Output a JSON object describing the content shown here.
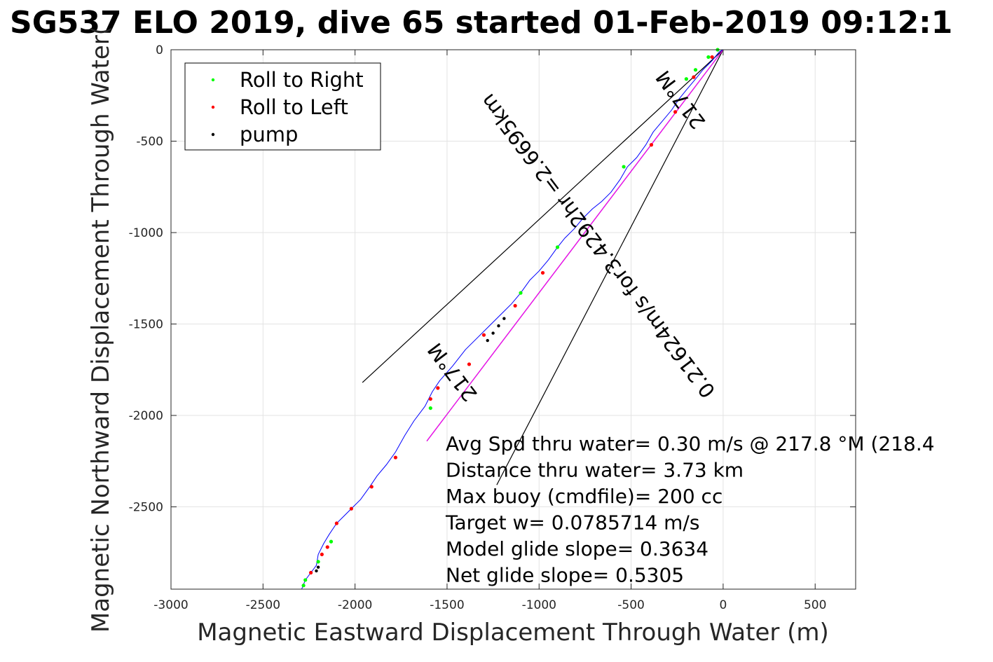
{
  "chart_data": {
    "type": "line",
    "title": "SG537 ELO 2019, dive 65 started 01-Feb-2019 09:12:1",
    "xlabel": "Magnetic Eastward Displacement Through Water (m)",
    "ylabel": "Magnetic Northward Displacement Through Water(",
    "xlim": [
      -3000,
      720
    ],
    "ylim": [
      -2950,
      0
    ],
    "xticks": [
      -3000,
      -2500,
      -2000,
      -1500,
      -1000,
      -500,
      0,
      500
    ],
    "yticks": [
      0,
      -500,
      -1000,
      -1500,
      -2000,
      -2500
    ],
    "xtick_labels": [
      "-3000",
      "-2500",
      "-2000",
      "-1500",
      "-1000",
      "-500",
      "0",
      "500"
    ],
    "ytick_labels": [
      "0",
      "-500",
      "-1000",
      "-1500",
      "-2000",
      "-2500"
    ],
    "grid": true,
    "legend": {
      "placement": "top-left",
      "entries": [
        {
          "label": "Roll to Right",
          "color": "#00ff00"
        },
        {
          "label": "Roll to Left",
          "color": "#ff0000"
        },
        {
          "label": "pump",
          "color": "#000000"
        }
      ]
    },
    "track": {
      "color": "#0000ff",
      "x": [
        0,
        -20,
        -60,
        -110,
        -150,
        -200,
        -240,
        -280,
        -330,
        -380,
        -420,
        -470,
        -520,
        -560,
        -610,
        -660,
        -710,
        -760,
        -810,
        -860,
        -900,
        -950,
        -1000,
        -1050,
        -1100,
        -1150,
        -1200,
        -1260,
        -1330,
        -1400,
        -1470,
        -1540,
        -1580,
        -1620,
        -1680,
        -1730,
        -1780,
        -1830,
        -1880,
        -1920,
        -1970,
        -2020,
        -2060,
        -2100,
        -2140,
        -2170,
        -2200,
        -2210,
        -2240,
        -2270,
        -2290
      ],
      "y": [
        0,
        -10,
        -60,
        -110,
        -160,
        -220,
        -270,
        -330,
        -390,
        -450,
        -520,
        -590,
        -640,
        -710,
        -780,
        -830,
        -870,
        -920,
        -980,
        -1030,
        -1080,
        -1150,
        -1210,
        -1260,
        -1330,
        -1390,
        -1440,
        -1500,
        -1570,
        -1640,
        -1730,
        -1810,
        -1870,
        -1950,
        -2030,
        -2110,
        -2200,
        -2270,
        -2330,
        -2390,
        -2460,
        -2510,
        -2550,
        -2590,
        -2650,
        -2700,
        -2760,
        -2820,
        -2860,
        -2900,
        -2950
      ]
    },
    "roll_right": {
      "color": "#00ff00",
      "x": [
        -30,
        -80,
        -150,
        -200,
        -540,
        -900,
        -1100,
        -1590,
        -2130,
        -2200,
        -2270,
        -2280
      ],
      "y": [
        0,
        -40,
        -110,
        -160,
        -640,
        -1080,
        -1330,
        -1960,
        -2690,
        -2800,
        -2900,
        -2930
      ]
    },
    "roll_left": {
      "color": "#ff0000",
      "x": [
        -60,
        -160,
        -260,
        -390,
        -980,
        -1130,
        -1300,
        -1380,
        -1550,
        -1590,
        -1780,
        -1910,
        -2020,
        -2100,
        -2150,
        -2180,
        -2240
      ],
      "y": [
        -40,
        -150,
        -340,
        -520,
        -1220,
        -1400,
        -1560,
        -1720,
        -1850,
        -1910,
        -2230,
        -2390,
        -2510,
        -2590,
        -2720,
        -2760,
        -2860
      ]
    },
    "pump": {
      "color": "#000000",
      "x": [
        -1190,
        -1220,
        -1250,
        -1280,
        -2200,
        -2210
      ],
      "y": [
        -1470,
        -1510,
        -1550,
        -1590,
        -2830,
        -2850
      ]
    },
    "reference_lines": [
      {
        "color": "#000000",
        "x": [
          0,
          -1960
        ],
        "y": [
          0,
          -1820
        ]
      },
      {
        "color": "#000000",
        "x": [
          0,
          -1230
        ],
        "y": [
          0,
          -2380
        ]
      },
      {
        "color": "#000000",
        "x": [
          0,
          -1610
        ],
        "y": [
          0,
          -2140
        ]
      },
      {
        "color": "#ff00ff",
        "x": [
          0,
          -1610
        ],
        "y": [
          0,
          -2140
        ]
      }
    ],
    "rotated_labels": [
      {
        "text": "217°M",
        "x": -200,
        "y": -250,
        "angle": -127
      },
      {
        "text": "0.21624m/s for3.4292hr =2.6695km",
        "x": -650,
        "y": -1050,
        "angle": -127
      },
      {
        "text": "217°M",
        "x": -1440,
        "y": -1740,
        "angle": -127
      }
    ],
    "annotations": [
      "Avg Spd thru water=  0.30 m/s @ 217.8 °M (218.4",
      "Distance thru water=  3.73 km",
      "Max buoy (cmdfile)= 200 cc",
      "Target w= 0.0785714 m/s",
      "Model glide slope= 0.3634",
      "Net glide slope= 0.5305"
    ]
  }
}
